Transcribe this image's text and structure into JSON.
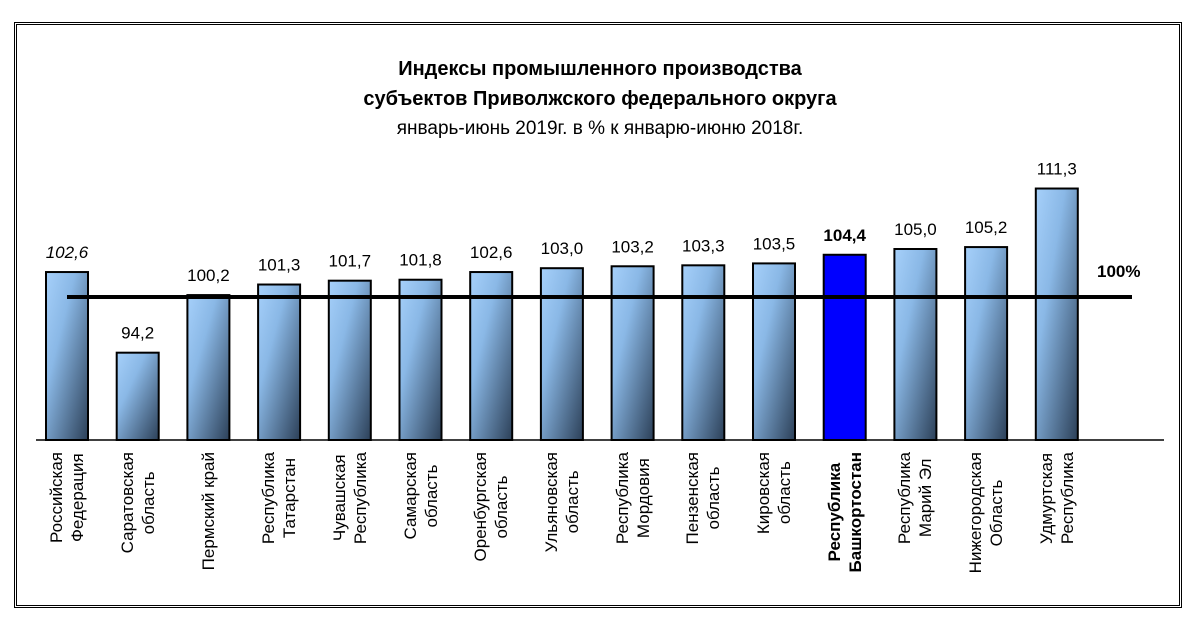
{
  "chart_data": {
    "type": "bar",
    "title": "Индексы промышленного производства",
    "title_line2": "субъектов Приволжского федерального округа",
    "subtitle": "январь-июнь 2019г. в % к  январю-июню 2018г.",
    "categories": [
      [
        "Российская",
        "Федерация"
      ],
      [
        "Саратовская",
        "область"
      ],
      [
        "Пермский край"
      ],
      [
        "Республика",
        "Татарстан"
      ],
      [
        "Чувашская",
        "Республика"
      ],
      [
        "Самарская",
        "область"
      ],
      [
        "Оренбургская",
        "область"
      ],
      [
        "Ульяновская",
        "область"
      ],
      [
        "Республика",
        "Мордовия"
      ],
      [
        "Пензенская",
        "область"
      ],
      [
        "Кировская",
        "область"
      ],
      [
        "Республика",
        "Башкортостан"
      ],
      [
        "Республика",
        "Марий Эл"
      ],
      [
        "Нижегородская",
        "Область"
      ],
      [
        "Удмуртская",
        "Республика"
      ]
    ],
    "values": [
      102.6,
      94.2,
      100.2,
      101.3,
      101.7,
      101.8,
      102.6,
      103.0,
      103.2,
      103.3,
      103.5,
      104.4,
      105.0,
      105.2,
      111.3
    ],
    "data_labels": [
      "102,6",
      "94,2",
      "100,2",
      "101,3",
      "101,7",
      "101,8",
      "102,6",
      "103,0",
      "103,2",
      "103,3",
      "103,5",
      "104,4",
      "105,0",
      "105,2",
      "111,3"
    ],
    "highlight_index": 11,
    "italic_index": 0,
    "reference_line": {
      "value": 100,
      "label": "100%"
    },
    "ylim": [
      85,
      112
    ],
    "grid": false,
    "colors": {
      "bar_light": "#a6d0fa",
      "bar_dark": "#2c4058",
      "highlight": "#0000ff",
      "outline": "#000000"
    }
  }
}
